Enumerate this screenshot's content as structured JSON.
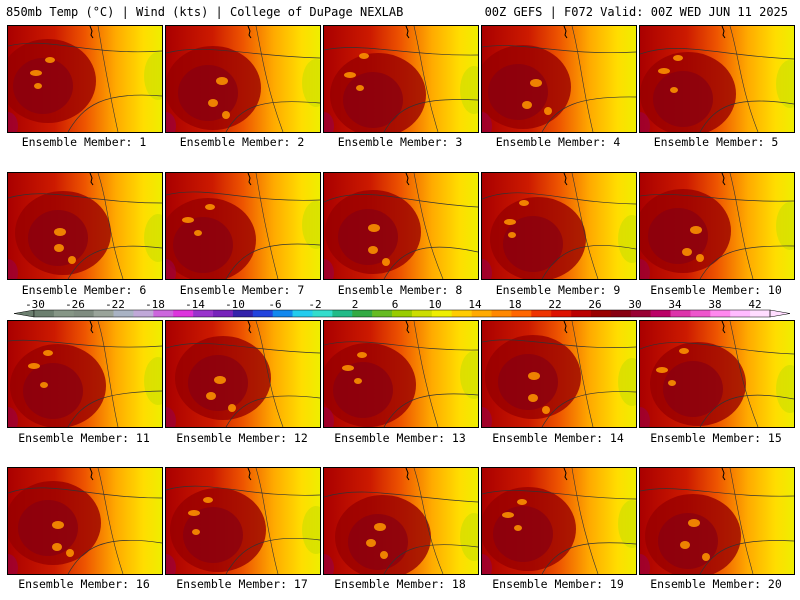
{
  "header": {
    "left_title": "850mb Temp (°C) | Wind (kts) | College of DuPage NEXLAB",
    "right_title": "00Z GEFS | F072 Valid: 00Z WED JUN 11 2025"
  },
  "members": [
    "Ensemble Member: 1",
    "Ensemble Member: 2",
    "Ensemble Member: 3",
    "Ensemble Member: 4",
    "Ensemble Member: 5",
    "Ensemble Member: 6",
    "Ensemble Member: 7",
    "Ensemble Member: 8",
    "Ensemble Member: 9",
    "Ensemble Member: 10",
    "Ensemble Member: 11",
    "Ensemble Member: 12",
    "Ensemble Member: 13",
    "Ensemble Member: 14",
    "Ensemble Member: 15",
    "Ensemble Member: 16",
    "Ensemble Member: 17",
    "Ensemble Member: 18",
    "Ensemble Member: 19",
    "Ensemble Member: 20"
  ],
  "colorbar": {
    "labels": [
      "-30",
      "-26",
      "-22",
      "-18",
      "-14",
      "-10",
      "-6",
      "-2",
      "2",
      "6",
      "10",
      "14",
      "18",
      "22",
      "26",
      "30",
      "34",
      "38",
      "42"
    ],
    "colors": [
      "#6c7f6f",
      "#869686",
      "#7f8c80",
      "#9aa49a",
      "#a9b3c4",
      "#c0a8d8",
      "#cc66dd",
      "#dd33dd",
      "#9933cc",
      "#7722bb",
      "#3322aa",
      "#2244dd",
      "#1188ee",
      "#22ccee",
      "#33ddcc",
      "#22bb88",
      "#33aa44",
      "#66bb22",
      "#99cc00",
      "#ccdd00",
      "#eeee00",
      "#ffcc00",
      "#ffaa00",
      "#ff8800",
      "#ff6600",
      "#ee3300",
      "#dd1100",
      "#bb0000",
      "#990000",
      "#880011",
      "#990033",
      "#bb0066",
      "#dd33aa",
      "#ee55cc",
      "#ff88ee",
      "#ffbbff",
      "#ffddff"
    ]
  }
}
